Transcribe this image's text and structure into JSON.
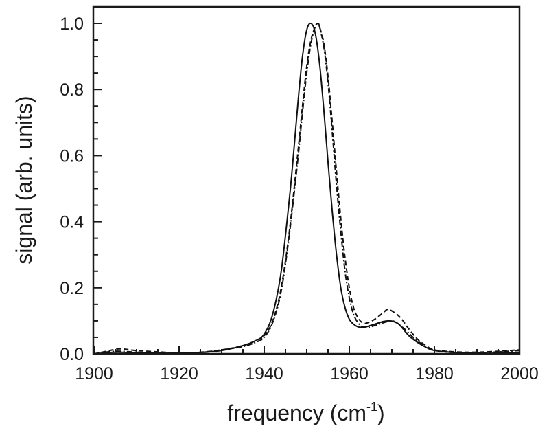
{
  "chart_data": {
    "type": "line",
    "title": "",
    "xlabel": "frequency (cm-1)",
    "xlabel_main": "frequency (cm",
    "xlabel_sup": "-1",
    "xlabel_close": ")",
    "ylabel": "signal (arb. units)",
    "xlim": [
      1900,
      2000
    ],
    "ylim": [
      0.0,
      1.05
    ],
    "x_ticks": [
      1900,
      1920,
      1940,
      1960,
      1980,
      2000
    ],
    "x_tick_labels": [
      "1900",
      "1920",
      "1940",
      "1960",
      "1980",
      "2000"
    ],
    "y_ticks": [
      0.0,
      0.2,
      0.4,
      0.6,
      0.8,
      1.0
    ],
    "y_tick_labels": [
      "0.0",
      "0.2",
      "0.4",
      "0.6",
      "0.8",
      "1.0"
    ],
    "x_minor_step": 5,
    "y_minor_step": 0.05,
    "grid": false,
    "legend": null,
    "series": [
      {
        "name": "solid",
        "style": "solid",
        "color": "#111111",
        "x": [
          1900,
          1905,
          1910,
          1915,
          1920,
          1925,
          1930,
          1935,
          1938,
          1940,
          1942,
          1944,
          1946,
          1947,
          1948,
          1949,
          1950,
          1951,
          1952,
          1953,
          1954,
          1955,
          1956,
          1957,
          1958,
          1959,
          1960,
          1961,
          1962,
          1963,
          1964,
          1966,
          1968,
          1969.5,
          1971,
          1972,
          1974,
          1976,
          1978,
          1980,
          1985,
          1990,
          1995,
          2000
        ],
        "values": [
          0.0,
          0.005,
          0.003,
          0.002,
          0.002,
          0.004,
          0.01,
          0.025,
          0.04,
          0.06,
          0.12,
          0.25,
          0.48,
          0.62,
          0.77,
          0.9,
          0.98,
          1.0,
          0.97,
          0.88,
          0.74,
          0.58,
          0.43,
          0.3,
          0.2,
          0.14,
          0.105,
          0.09,
          0.082,
          0.08,
          0.082,
          0.09,
          0.098,
          0.1,
          0.095,
          0.085,
          0.055,
          0.035,
          0.02,
          0.01,
          0.004,
          0.002,
          0.002,
          0.003
        ]
      },
      {
        "name": "dashed",
        "style": "dashed",
        "color": "#111111",
        "x": [
          1900,
          1903,
          1906,
          1910,
          1915,
          1920,
          1925,
          1930,
          1935,
          1938,
          1940,
          1942,
          1944,
          1946,
          1948,
          1949,
          1950,
          1951,
          1952,
          1952.6,
          1953,
          1954,
          1955,
          1956,
          1957,
          1958,
          1959,
          1960,
          1961,
          1962,
          1963,
          1964,
          1966,
          1968,
          1969,
          1970,
          1972,
          1974,
          1976,
          1978,
          1980,
          1985,
          1990,
          1995,
          2000
        ],
        "values": [
          0.0,
          0.008,
          0.015,
          0.01,
          0.006,
          0.003,
          0.005,
          0.012,
          0.025,
          0.04,
          0.055,
          0.1,
          0.2,
          0.38,
          0.62,
          0.75,
          0.87,
          0.95,
          0.99,
          1.0,
          0.99,
          0.94,
          0.84,
          0.7,
          0.55,
          0.41,
          0.29,
          0.2,
          0.14,
          0.11,
          0.095,
          0.093,
          0.105,
          0.125,
          0.135,
          0.13,
          0.11,
          0.075,
          0.045,
          0.025,
          0.012,
          0.006,
          0.005,
          0.008,
          0.012
        ]
      },
      {
        "name": "dash-dot",
        "style": "dashdot",
        "color": "#111111",
        "x": [
          1900,
          1905,
          1910,
          1915,
          1920,
          1925,
          1930,
          1935,
          1938,
          1940,
          1942,
          1944,
          1946,
          1948,
          1949,
          1950,
          1951,
          1952,
          1952.6,
          1953,
          1954,
          1955,
          1956,
          1957,
          1958,
          1959,
          1960,
          1961,
          1962,
          1963,
          1964,
          1965,
          1967,
          1969,
          1970,
          1971,
          1973,
          1975,
          1977,
          1979,
          1981,
          1985,
          1990,
          1995,
          2000
        ],
        "values": [
          0.0,
          0.008,
          0.005,
          0.003,
          0.002,
          0.004,
          0.012,
          0.022,
          0.035,
          0.05,
          0.095,
          0.19,
          0.37,
          0.6,
          0.73,
          0.85,
          0.94,
          0.99,
          1.0,
          0.99,
          0.93,
          0.82,
          0.67,
          0.51,
          0.37,
          0.25,
          0.17,
          0.12,
          0.095,
          0.083,
          0.08,
          0.082,
          0.09,
          0.098,
          0.1,
          0.095,
          0.075,
          0.05,
          0.03,
          0.016,
          0.008,
          0.004,
          0.003,
          0.006,
          0.01
        ]
      }
    ]
  }
}
